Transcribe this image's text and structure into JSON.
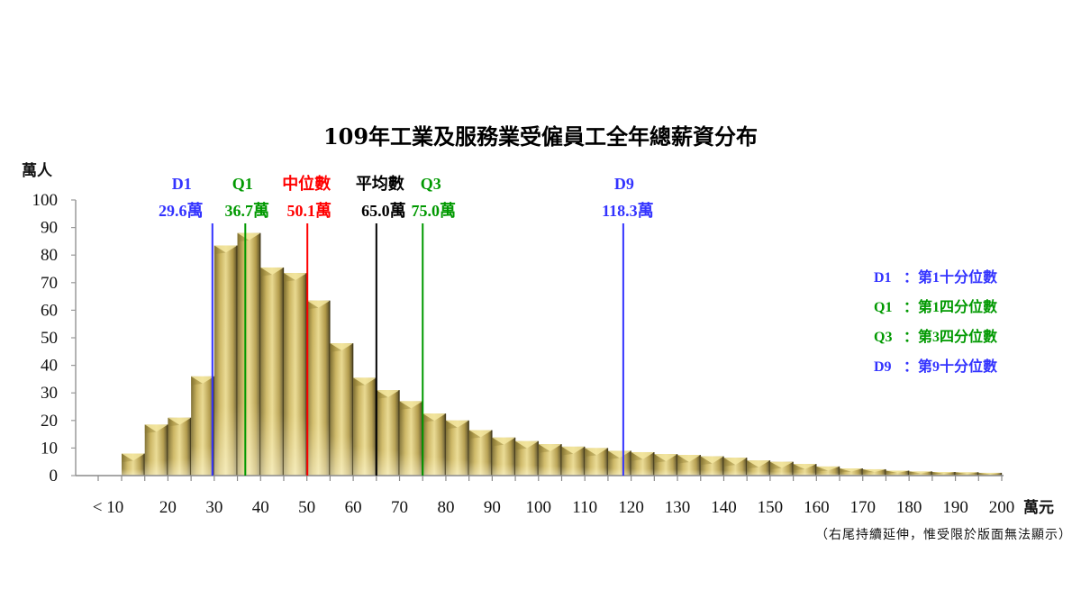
{
  "chart_data": {
    "type": "bar",
    "title": "109年工業及服務業受僱員工全年總薪資分布",
    "ylabel": "萬人",
    "xlabel": "萬元",
    "ylim": [
      0,
      100
    ],
    "yticks": [
      0,
      10,
      20,
      30,
      40,
      50,
      60,
      70,
      80,
      90,
      100
    ],
    "xtick_labels": [
      "< 10",
      "20",
      "30",
      "40",
      "50",
      "60",
      "70",
      "80",
      "90",
      "100",
      "110",
      "120",
      "130",
      "140",
      "150",
      "160",
      "170",
      "180",
      "190",
      "200"
    ],
    "bin_width": 5,
    "categories": [
      "<10",
      "10-15",
      "15-20",
      "20-25",
      "25-30",
      "30-35",
      "35-40",
      "40-45",
      "45-50",
      "50-55",
      "55-60",
      "60-65",
      "65-70",
      "70-75",
      "75-80",
      "80-85",
      "85-90",
      "90-95",
      "95-100",
      "100-105",
      "105-110",
      "110-115",
      "115-120",
      "120-125",
      "125-130",
      "130-135",
      "135-140",
      "140-145",
      "145-150",
      "150-155",
      "155-160",
      "160-165",
      "165-170",
      "170-175",
      "175-180",
      "180-185",
      "185-190",
      "190-195",
      "195-200"
    ],
    "values": [
      0,
      8,
      18.5,
      21,
      36,
      83.5,
      88,
      75.5,
      73.5,
      63.5,
      48,
      35.5,
      31,
      27,
      22.5,
      20,
      16.5,
      13.8,
      12.5,
      11.4,
      10.5,
      10,
      9,
      8.5,
      7.8,
      7.5,
      7,
      6.5,
      5.5,
      5,
      4.2,
      3.3,
      2.6,
      2.3,
      1.8,
      1.5,
      1.3,
      1.2,
      1.0
    ],
    "markers": [
      {
        "key": "D1",
        "name": "D1",
        "value": 29.6,
        "label": "29.6萬",
        "color": "#3333ff"
      },
      {
        "key": "Q1",
        "name": "Q1",
        "value": 36.7,
        "label": "36.7萬",
        "color": "#009900"
      },
      {
        "key": "median",
        "name": "中位數",
        "value": 50.1,
        "label": "50.1萬",
        "color": "#ff0000"
      },
      {
        "key": "mean",
        "name": "平均數",
        "value": 65.0,
        "label": "65.0萬",
        "color": "#000000"
      },
      {
        "key": "Q3",
        "name": "Q3",
        "value": 75.0,
        "label": "75.0萬",
        "color": "#009900"
      },
      {
        "key": "D9",
        "name": "D9",
        "value": 118.3,
        "label": "118.3萬",
        "color": "#3333ff"
      }
    ],
    "legend": [
      {
        "key": "D1",
        "text": "第1十分位數",
        "color": "#3333ff"
      },
      {
        "key": "Q1",
        "text": "第1四分位數",
        "color": "#009900"
      },
      {
        "key": "Q3",
        "text": "第3四分位數",
        "color": "#009900"
      },
      {
        "key": "D9",
        "text": "第9十分位數",
        "color": "#3333ff"
      }
    ],
    "legend_position": "right",
    "grid": false,
    "note": "（右尾持續延伸，惟受限於版面無法顯示）",
    "bar_color": "#c8b05a"
  }
}
